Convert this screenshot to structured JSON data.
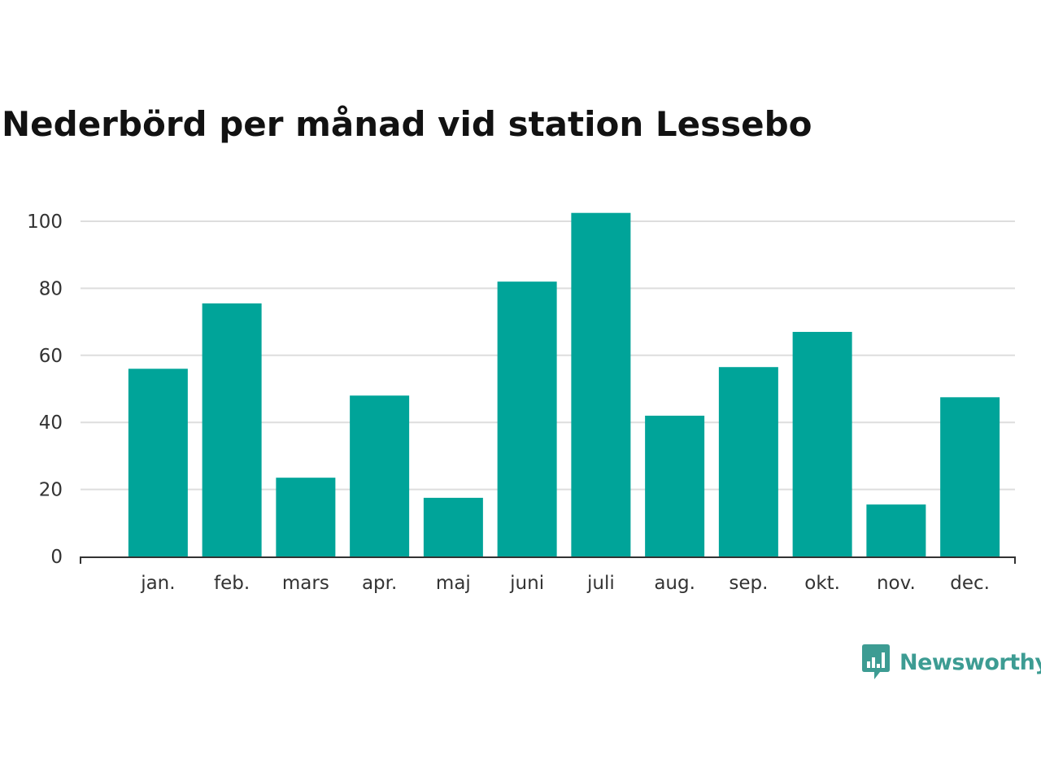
{
  "chart_data": {
    "type": "bar",
    "title": "Nederbörd per månad vid station Lessebo",
    "categories": [
      "jan.",
      "feb.",
      "mars",
      "apr.",
      "maj",
      "juni",
      "juli",
      "aug.",
      "sep.",
      "okt.",
      "nov.",
      "dec."
    ],
    "values": [
      56,
      75.5,
      23.5,
      48,
      17.5,
      82,
      102.5,
      42,
      56.5,
      67,
      15.5,
      47.5
    ],
    "ylim": [
      0,
      100
    ],
    "yticks": [
      0,
      20,
      40,
      60,
      80,
      100
    ],
    "xlabel": "",
    "ylabel": "",
    "grid": true,
    "legend": "none",
    "bar_color": "#00a499",
    "grid_color": "#dddddd",
    "axis_color": "#333333"
  },
  "branding": {
    "name": "Newsworthy",
    "icon": "newsworthy-logo-icon",
    "color": "#3d9c93"
  }
}
